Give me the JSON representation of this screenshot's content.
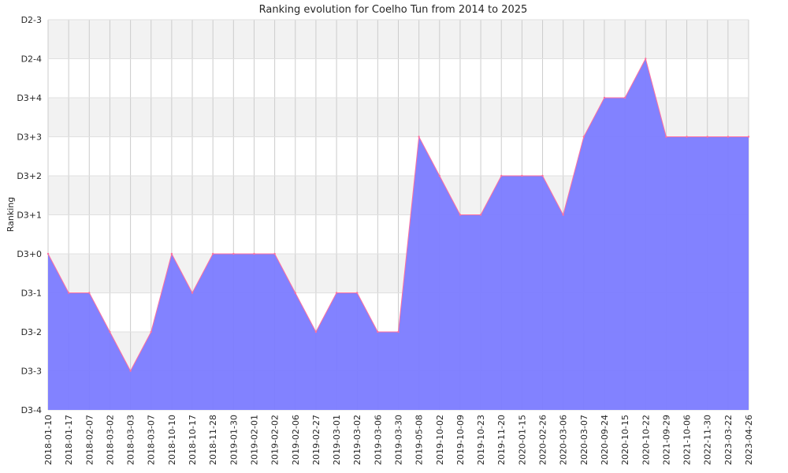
{
  "chart_data": {
    "type": "area",
    "title": "Ranking evolution for Coelho Tun from 2014 to 2025",
    "xlabel": "",
    "ylabel": "Ranking",
    "y_ticks": [
      "D3-4",
      "D3-3",
      "D3-2",
      "D3-1",
      "D3+0",
      "D3+1",
      "D3+2",
      "D3+3",
      "D3+4",
      "D2-4",
      "D2-3"
    ],
    "ylim": [
      0,
      10
    ],
    "grid": true,
    "background_bands": "alternating light gray / white",
    "colors": {
      "fill": "#7b7bff",
      "line": "#ff6f9f",
      "band": "#f2f2f2",
      "grid": "#cccccc"
    },
    "categories": [
      "2018-01-10",
      "2018-01-17",
      "2018-02-07",
      "2018-03-02",
      "2018-03-03",
      "2018-03-07",
      "2018-10-10",
      "2018-10-17",
      "2018-11-28",
      "2019-01-30",
      "2019-02-01",
      "2019-02-02",
      "2019-02-06",
      "2019-02-27",
      "2019-03-01",
      "2019-03-02",
      "2019-03-06",
      "2019-03-30",
      "2019-05-08",
      "2019-10-02",
      "2019-10-09",
      "2019-10-23",
      "2019-11-20",
      "2020-01-15",
      "2020-02-26",
      "2020-03-06",
      "2020-03-07",
      "2020-09-24",
      "2020-10-15",
      "2020-10-22",
      "2021-09-29",
      "2021-10-06",
      "2022-11-30",
      "2023-03-22",
      "2023-04-26"
    ],
    "values": [
      4,
      3,
      3,
      2,
      1,
      2,
      4,
      3,
      4,
      4,
      4,
      4,
      3,
      2,
      3,
      3,
      2,
      2,
      7,
      6,
      5,
      5,
      6,
      6,
      6,
      5,
      7,
      8,
      8,
      9,
      7,
      7,
      7,
      7,
      7
    ]
  }
}
